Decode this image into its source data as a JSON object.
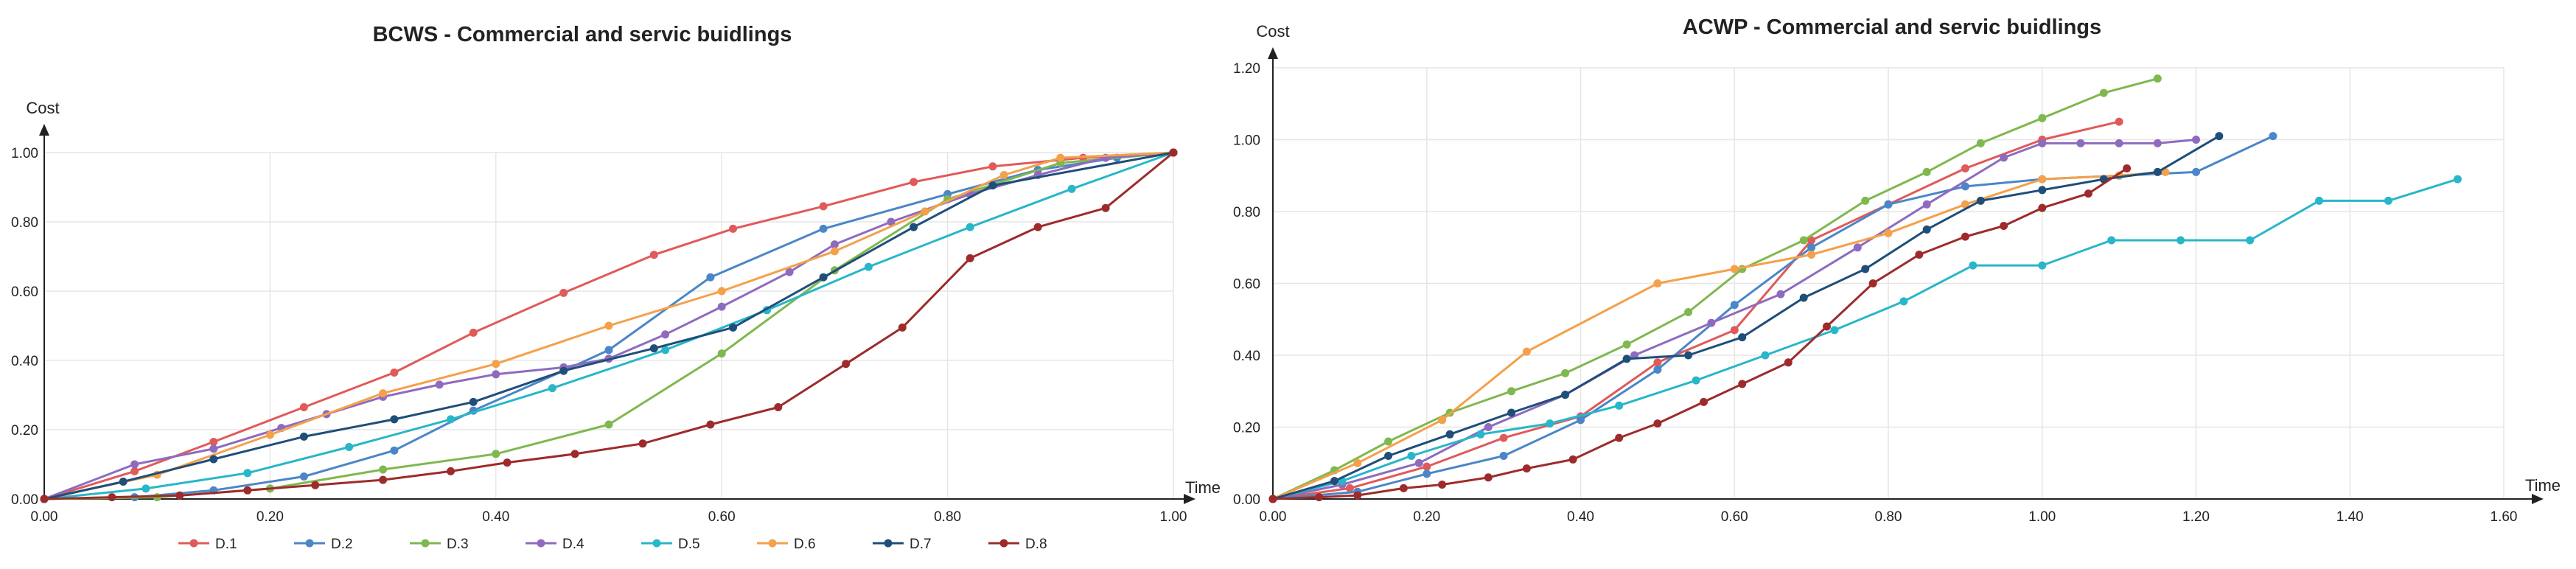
{
  "chart_data": [
    {
      "type": "line",
      "title": "BCWS - Commercial and servic buidlings",
      "xlabel": "Time",
      "ylabel": "Cost",
      "xlim": [
        0,
        1
      ],
      "ylim": [
        0,
        1
      ],
      "xticks": [
        "0.00",
        "0.20",
        "0.40",
        "0.60",
        "0.80",
        "1.00"
      ],
      "yticks": [
        "0.00",
        "0.20",
        "0.40",
        "0.60",
        "0.80",
        "1.00"
      ],
      "grid": true,
      "legend": "bottom",
      "series": [
        {
          "name": "D.1",
          "color": "#e05a5a",
          "points": [
            [
              0,
              0
            ],
            [
              0.08,
              0.08
            ],
            [
              0.15,
              0.165
            ],
            [
              0.23,
              0.265
            ],
            [
              0.31,
              0.365
            ],
            [
              0.38,
              0.48
            ],
            [
              0.46,
              0.595
            ],
            [
              0.54,
              0.705
            ],
            [
              0.61,
              0.78
            ],
            [
              0.69,
              0.845
            ],
            [
              0.77,
              0.915
            ],
            [
              0.84,
              0.96
            ],
            [
              0.92,
              0.985
            ],
            [
              1,
              1
            ]
          ]
        },
        {
          "name": "D.2",
          "color": "#4a86c8",
          "points": [
            [
              0,
              0
            ],
            [
              0.08,
              0.005
            ],
            [
              0.15,
              0.025
            ],
            [
              0.23,
              0.065
            ],
            [
              0.31,
              0.14
            ],
            [
              0.38,
              0.255
            ],
            [
              0.46,
              0.37
            ],
            [
              0.5,
              0.43
            ],
            [
              0.59,
              0.64
            ],
            [
              0.69,
              0.78
            ],
            [
              0.8,
              0.88
            ],
            [
              0.88,
              0.95
            ],
            [
              0.95,
              0.985
            ],
            [
              1,
              1
            ]
          ]
        },
        {
          "name": "D.3",
          "color": "#7fb84e",
          "points": [
            [
              0,
              0
            ],
            [
              0.1,
              0.005
            ],
            [
              0.2,
              0.03
            ],
            [
              0.3,
              0.085
            ],
            [
              0.4,
              0.13
            ],
            [
              0.5,
              0.215
            ],
            [
              0.6,
              0.42
            ],
            [
              0.7,
              0.66
            ],
            [
              0.8,
              0.865
            ],
            [
              0.9,
              0.97
            ],
            [
              1,
              1
            ]
          ]
        },
        {
          "name": "D.4",
          "color": "#8e6bbf",
          "points": [
            [
              0,
              0
            ],
            [
              0.08,
              0.1
            ],
            [
              0.15,
              0.145
            ],
            [
              0.21,
              0.205
            ],
            [
              0.25,
              0.245
            ],
            [
              0.3,
              0.295
            ],
            [
              0.35,
              0.33
            ],
            [
              0.4,
              0.36
            ],
            [
              0.46,
              0.38
            ],
            [
              0.5,
              0.405
            ],
            [
              0.55,
              0.475
            ],
            [
              0.6,
              0.555
            ],
            [
              0.66,
              0.655
            ],
            [
              0.7,
              0.735
            ],
            [
              0.75,
              0.8
            ],
            [
              0.82,
              0.88
            ],
            [
              0.88,
              0.935
            ],
            [
              0.94,
              0.985
            ],
            [
              1,
              1
            ]
          ]
        },
        {
          "name": "D.5",
          "color": "#29b6c9",
          "points": [
            [
              0,
              0
            ],
            [
              0.09,
              0.03
            ],
            [
              0.18,
              0.075
            ],
            [
              0.27,
              0.15
            ],
            [
              0.36,
              0.23
            ],
            [
              0.45,
              0.32
            ],
            [
              0.55,
              0.43
            ],
            [
              0.64,
              0.545
            ],
            [
              0.73,
              0.67
            ],
            [
              0.82,
              0.785
            ],
            [
              0.91,
              0.895
            ],
            [
              1,
              1
            ]
          ]
        },
        {
          "name": "D.6",
          "color": "#f5a04a",
          "points": [
            [
              0,
              0
            ],
            [
              0.1,
              0.07
            ],
            [
              0.2,
              0.185
            ],
            [
              0.3,
              0.305
            ],
            [
              0.4,
              0.39
            ],
            [
              0.5,
              0.5
            ],
            [
              0.6,
              0.6
            ],
            [
              0.7,
              0.715
            ],
            [
              0.78,
              0.83
            ],
            [
              0.85,
              0.935
            ],
            [
              0.9,
              0.985
            ],
            [
              1,
              1
            ]
          ]
        },
        {
          "name": "D.7",
          "color": "#1f4e79",
          "points": [
            [
              0,
              0
            ],
            [
              0.07,
              0.05
            ],
            [
              0.15,
              0.115
            ],
            [
              0.23,
              0.18
            ],
            [
              0.31,
              0.23
            ],
            [
              0.38,
              0.28
            ],
            [
              0.46,
              0.37
            ],
            [
              0.54,
              0.435
            ],
            [
              0.61,
              0.495
            ],
            [
              0.69,
              0.64
            ],
            [
              0.77,
              0.785
            ],
            [
              0.84,
              0.905
            ],
            [
              1,
              1
            ]
          ]
        },
        {
          "name": "D.8",
          "color": "#9e2b2b",
          "points": [
            [
              0,
              0
            ],
            [
              0.06,
              0.005
            ],
            [
              0.12,
              0.01
            ],
            [
              0.18,
              0.025
            ],
            [
              0.24,
              0.04
            ],
            [
              0.3,
              0.055
            ],
            [
              0.36,
              0.08
            ],
            [
              0.41,
              0.105
            ],
            [
              0.47,
              0.13
            ],
            [
              0.53,
              0.16
            ],
            [
              0.59,
              0.215
            ],
            [
              0.65,
              0.265
            ],
            [
              0.71,
              0.39
            ],
            [
              0.76,
              0.495
            ],
            [
              0.82,
              0.695
            ],
            [
              0.88,
              0.785
            ],
            [
              0.94,
              0.84
            ],
            [
              1,
              1
            ]
          ]
        }
      ]
    },
    {
      "type": "line",
      "title": "ACWP - Commercial and servic buidlings",
      "xlabel": "Time",
      "ylabel": "Cost",
      "xlim": [
        0,
        1.6
      ],
      "ylim": [
        0,
        1.2
      ],
      "xticks": [
        "0.00",
        "0.20",
        "0.40",
        "0.60",
        "0.80",
        "1.00",
        "1.20",
        "1.40",
        "1.60"
      ],
      "yticks": [
        "0.00",
        "0.20",
        "0.40",
        "0.60",
        "0.80",
        "1.00",
        "1.20"
      ],
      "grid": true,
      "series": [
        {
          "name": "D.1",
          "color": "#e05a5a",
          "points": [
            [
              0,
              0
            ],
            [
              0.1,
              0.03
            ],
            [
              0.2,
              0.09
            ],
            [
              0.3,
              0.17
            ],
            [
              0.4,
              0.23
            ],
            [
              0.5,
              0.38
            ],
            [
              0.6,
              0.47
            ],
            [
              0.7,
              0.72
            ],
            [
              0.8,
              0.82
            ],
            [
              0.9,
              0.92
            ],
            [
              1,
              1.0
            ],
            [
              1.1,
              1.05
            ]
          ]
        },
        {
          "name": "D.2",
          "color": "#4a86c8",
          "points": [
            [
              0,
              0
            ],
            [
              0.11,
              0.02
            ],
            [
              0.2,
              0.07
            ],
            [
              0.3,
              0.12
            ],
            [
              0.4,
              0.22
            ],
            [
              0.5,
              0.36
            ],
            [
              0.6,
              0.54
            ],
            [
              0.7,
              0.7
            ],
            [
              0.8,
              0.82
            ],
            [
              0.9,
              0.87
            ],
            [
              1,
              0.89
            ],
            [
              1.1,
              0.9
            ],
            [
              1.2,
              0.91
            ],
            [
              1.3,
              1.01
            ]
          ]
        },
        {
          "name": "D.3",
          "color": "#7fb84e",
          "points": [
            [
              0,
              0
            ],
            [
              0.08,
              0.08
            ],
            [
              0.15,
              0.16
            ],
            [
              0.23,
              0.24
            ],
            [
              0.31,
              0.3
            ],
            [
              0.38,
              0.35
            ],
            [
              0.46,
              0.43
            ],
            [
              0.54,
              0.52
            ],
            [
              0.61,
              0.64
            ],
            [
              0.69,
              0.72
            ],
            [
              0.77,
              0.83
            ],
            [
              0.85,
              0.91
            ],
            [
              0.92,
              0.99
            ],
            [
              1,
              1.06
            ],
            [
              1.08,
              1.13
            ],
            [
              1.15,
              1.17
            ]
          ]
        },
        {
          "name": "D.4",
          "color": "#8e6bbf",
          "points": [
            [
              0,
              0
            ],
            [
              0.09,
              0.04
            ],
            [
              0.19,
              0.1
            ],
            [
              0.28,
              0.2
            ],
            [
              0.38,
              0.29
            ],
            [
              0.47,
              0.4
            ],
            [
              0.57,
              0.49
            ],
            [
              0.66,
              0.57
            ],
            [
              0.76,
              0.7
            ],
            [
              0.85,
              0.82
            ],
            [
              0.95,
              0.95
            ],
            [
              1,
              0.99
            ],
            [
              1.05,
              0.99
            ],
            [
              1.1,
              0.99
            ],
            [
              1.15,
              0.99
            ],
            [
              1.2,
              1.0
            ]
          ]
        },
        {
          "name": "D.5",
          "color": "#29b6c9",
          "points": [
            [
              0,
              0
            ],
            [
              0.09,
              0.05
            ],
            [
              0.18,
              0.12
            ],
            [
              0.27,
              0.18
            ],
            [
              0.36,
              0.21
            ],
            [
              0.45,
              0.26
            ],
            [
              0.55,
              0.33
            ],
            [
              0.64,
              0.4
            ],
            [
              0.73,
              0.47
            ],
            [
              0.82,
              0.55
            ],
            [
              0.91,
              0.65
            ],
            [
              1,
              0.65
            ],
            [
              1.09,
              0.72
            ],
            [
              1.18,
              0.72
            ],
            [
              1.27,
              0.72
            ],
            [
              1.36,
              0.83
            ],
            [
              1.45,
              0.83
            ],
            [
              1.54,
              0.89
            ]
          ]
        },
        {
          "name": "D.6",
          "color": "#f5a04a",
          "points": [
            [
              0,
              0
            ],
            [
              0.11,
              0.1
            ],
            [
              0.22,
              0.22
            ],
            [
              0.33,
              0.41
            ],
            [
              0.5,
              0.6
            ],
            [
              0.6,
              0.64
            ],
            [
              0.7,
              0.68
            ],
            [
              0.8,
              0.74
            ],
            [
              0.9,
              0.82
            ],
            [
              1,
              0.89
            ],
            [
              1.1,
              0.9
            ],
            [
              1.16,
              0.91
            ]
          ]
        },
        {
          "name": "D.7",
          "color": "#1f4e79",
          "points": [
            [
              0,
              0
            ],
            [
              0.08,
              0.05
            ],
            [
              0.15,
              0.12
            ],
            [
              0.23,
              0.18
            ],
            [
              0.31,
              0.24
            ],
            [
              0.38,
              0.29
            ],
            [
              0.46,
              0.39
            ],
            [
              0.54,
              0.4
            ],
            [
              0.61,
              0.45
            ],
            [
              0.69,
              0.56
            ],
            [
              0.77,
              0.64
            ],
            [
              0.85,
              0.75
            ],
            [
              0.92,
              0.83
            ],
            [
              1,
              0.86
            ],
            [
              1.08,
              0.89
            ],
            [
              1.15,
              0.91
            ],
            [
              1.23,
              1.01
            ]
          ]
        },
        {
          "name": "D.8",
          "color": "#9e2b2b",
          "points": [
            [
              0,
              0
            ],
            [
              0.06,
              0.005
            ],
            [
              0.11,
              0.01
            ],
            [
              0.17,
              0.03
            ],
            [
              0.22,
              0.04
            ],
            [
              0.28,
              0.06
            ],
            [
              0.33,
              0.085
            ],
            [
              0.39,
              0.11
            ],
            [
              0.45,
              0.17
            ],
            [
              0.5,
              0.21
            ],
            [
              0.56,
              0.27
            ],
            [
              0.61,
              0.32
            ],
            [
              0.67,
              0.38
            ],
            [
              0.72,
              0.48
            ],
            [
              0.78,
              0.6
            ],
            [
              0.84,
              0.68
            ],
            [
              0.9,
              0.73
            ],
            [
              0.95,
              0.76
            ],
            [
              1,
              0.81
            ],
            [
              1.06,
              0.85
            ],
            [
              1.11,
              0.92
            ]
          ]
        }
      ]
    }
  ]
}
